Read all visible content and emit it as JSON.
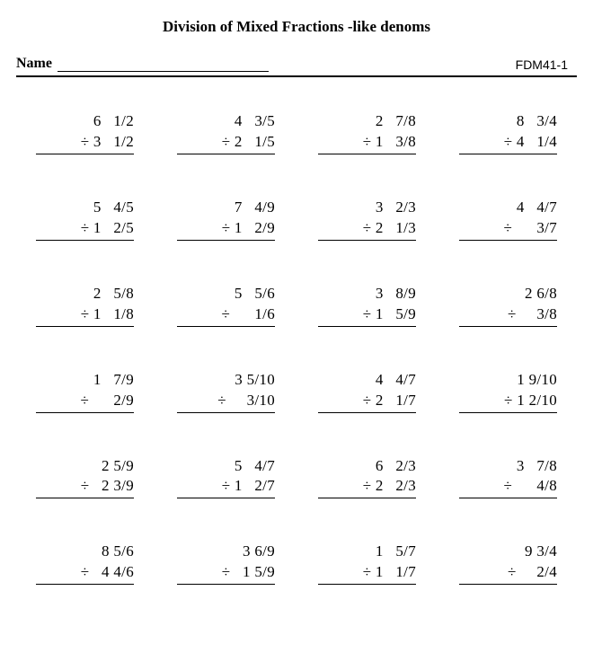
{
  "title": "Division of Mixed Fractions -like denoms",
  "name_label": "Name",
  "worksheet_code": "FDM41-1",
  "text_color": "#000000",
  "background_color": "#ffffff",
  "problem_font_size": 17,
  "title_font_size": 17,
  "problems": [
    {
      "top": "6   1/2",
      "bottom": "÷ 3   1/2"
    },
    {
      "top": "4   3/5",
      "bottom": "÷ 2   1/5"
    },
    {
      "top": "2   7/8",
      "bottom": "÷ 1   3/8"
    },
    {
      "top": "8   3/4",
      "bottom": "÷ 4   1/4"
    },
    {
      "top": "5   4/5",
      "bottom": "÷ 1   2/5"
    },
    {
      "top": "7   4/9",
      "bottom": "÷ 1   2/9"
    },
    {
      "top": "3   2/3",
      "bottom": "÷ 2   1/3"
    },
    {
      "top": "4   4/7",
      "bottom": "÷      3/7"
    },
    {
      "top": "2   5/8",
      "bottom": "÷ 1   1/8"
    },
    {
      "top": "5   5/6",
      "bottom": "÷      1/6"
    },
    {
      "top": "3   8/9",
      "bottom": "÷ 1   5/9"
    },
    {
      "top": "2 6/8",
      "bottom": "÷     3/8"
    },
    {
      "top": "1   7/9",
      "bottom": "÷      2/9"
    },
    {
      "top": "3 5/10",
      "bottom": "÷     3/10"
    },
    {
      "top": "4   4/7",
      "bottom": "÷ 2   1/7"
    },
    {
      "top": "1 9/10",
      "bottom": "÷ 1 2/10"
    },
    {
      "top": "2 5/9",
      "bottom": "÷   2 3/9"
    },
    {
      "top": "5   4/7",
      "bottom": "÷ 1   2/7"
    },
    {
      "top": "6   2/3",
      "bottom": "÷ 2   2/3"
    },
    {
      "top": "3   7/8",
      "bottom": "÷      4/8"
    },
    {
      "top": "8 5/6",
      "bottom": "÷   4 4/6"
    },
    {
      "top": "3 6/9",
      "bottom": "÷   1 5/9"
    },
    {
      "top": "1   5/7",
      "bottom": "÷ 1   1/7"
    },
    {
      "top": "9 3/4",
      "bottom": "÷     2/4"
    }
  ]
}
